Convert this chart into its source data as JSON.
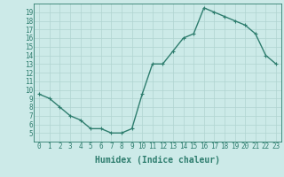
{
  "x": [
    0,
    1,
    2,
    3,
    4,
    5,
    6,
    7,
    8,
    9,
    10,
    11,
    12,
    13,
    14,
    15,
    16,
    17,
    18,
    19,
    20,
    21,
    22,
    23
  ],
  "y": [
    9.5,
    9.0,
    8.0,
    7.0,
    6.5,
    5.5,
    5.5,
    5.0,
    5.0,
    5.5,
    9.5,
    13.0,
    13.0,
    14.5,
    16.0,
    16.5,
    19.5,
    19.0,
    18.5,
    18.0,
    17.5,
    16.5,
    14.0,
    13.0
  ],
  "xlabel": "Humidex (Indice chaleur)",
  "ylim": [
    4,
    20
  ],
  "xlim": [
    -0.5,
    23.5
  ],
  "yticks": [
    5,
    6,
    7,
    8,
    9,
    10,
    11,
    12,
    13,
    14,
    15,
    16,
    17,
    18,
    19
  ],
  "xticks": [
    0,
    1,
    2,
    3,
    4,
    5,
    6,
    7,
    8,
    9,
    10,
    11,
    12,
    13,
    14,
    15,
    16,
    17,
    18,
    19,
    20,
    21,
    22,
    23
  ],
  "line_color": "#2e7d6e",
  "bg_color": "#cceae8",
  "grid_color": "#b0d4d0",
  "tick_color": "#2e7d6e",
  "marker": "+",
  "marker_size": 3,
  "line_width": 1.0,
  "tick_fontsize": 5.5,
  "xlabel_fontsize": 7.0
}
